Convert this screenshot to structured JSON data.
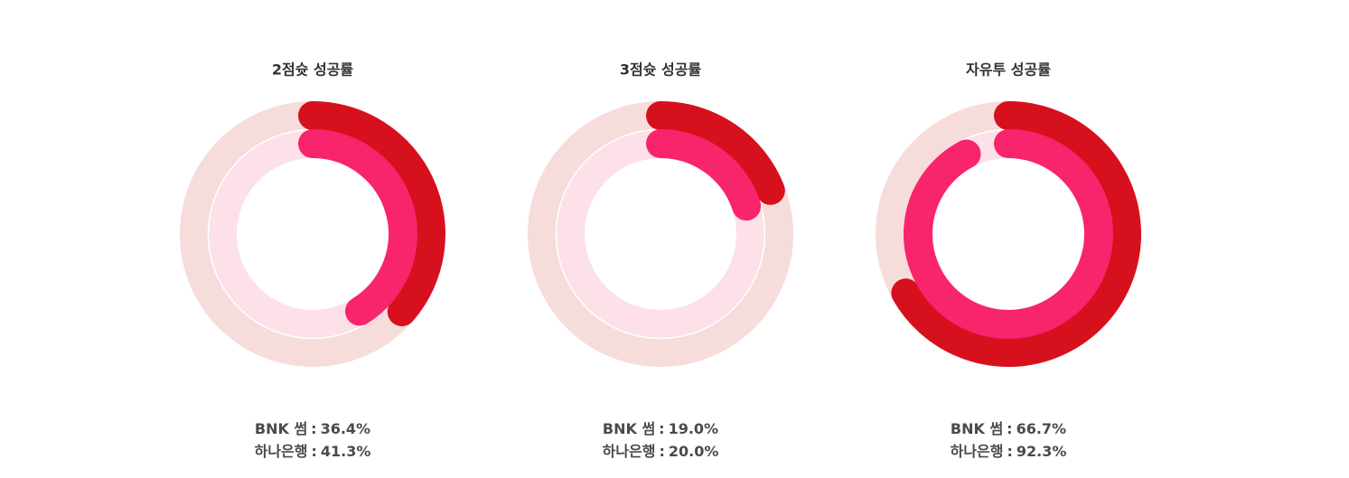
{
  "chart_data": [
    {
      "type": "radial",
      "title": "2점슛 성공률",
      "ylim": [
        0,
        100
      ],
      "label_separator": ":",
      "series": [
        {
          "name": "BNK 썸",
          "color": "#d7101e",
          "track_color": "#f7dcdc",
          "values": [
            36.4
          ],
          "value_labels": [
            "36.4%"
          ]
        },
        {
          "name": "하나은행",
          "color": "#f8246c",
          "track_color": "#fde0e8",
          "values": [
            41.3
          ],
          "value_labels": [
            "41.3%"
          ]
        }
      ]
    },
    {
      "type": "radial",
      "title": "3점슛 성공률",
      "ylim": [
        0,
        100
      ],
      "label_separator": ":",
      "series": [
        {
          "name": "BNK 썸",
          "color": "#d7101e",
          "track_color": "#f7dcdc",
          "values": [
            19.0
          ],
          "value_labels": [
            "19.0%"
          ]
        },
        {
          "name": "하나은행",
          "color": "#f8246c",
          "track_color": "#fde0e8",
          "values": [
            20.0
          ],
          "value_labels": [
            "20.0%"
          ]
        }
      ]
    },
    {
      "type": "radial",
      "title": "자유투 성공률",
      "ylim": [
        0,
        100
      ],
      "label_separator": ":",
      "series": [
        {
          "name": "BNK 썸",
          "color": "#d7101e",
          "track_color": "#f7dcdc",
          "values": [
            66.7
          ],
          "value_labels": [
            "66.7%"
          ]
        },
        {
          "name": "하나은행",
          "color": "#f8246c",
          "track_color": "#fde0e8",
          "values": [
            92.3
          ],
          "value_labels": [
            "92.3%"
          ]
        }
      ]
    }
  ]
}
